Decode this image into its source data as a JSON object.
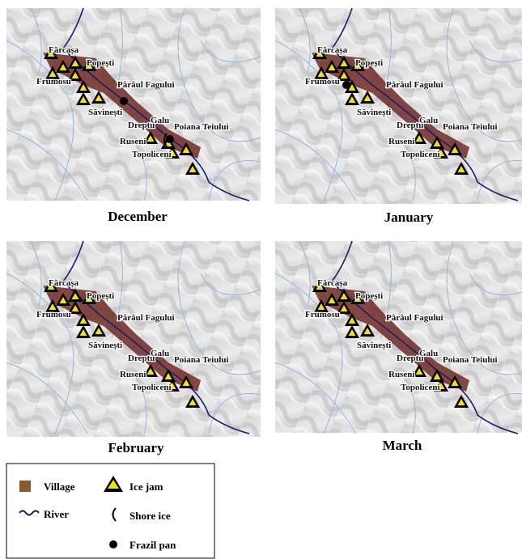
{
  "panels": [
    {
      "title": "December"
    },
    {
      "title": "January"
    },
    {
      "title": "February"
    },
    {
      "title": "March"
    }
  ],
  "place_names": [
    "Fărcașa",
    "Popești",
    "Frumosu",
    "Pârâul Fagului",
    "Săvinești",
    "Galu",
    "Dreptu",
    "Poiana Teiului",
    "Ruseni",
    "Topoliceni"
  ],
  "legend": {
    "village": "Village",
    "ice_jam": "Ice jam",
    "river": "River",
    "shore_ice": "Shore ice",
    "frazil_pan": "Frazil pan"
  }
}
